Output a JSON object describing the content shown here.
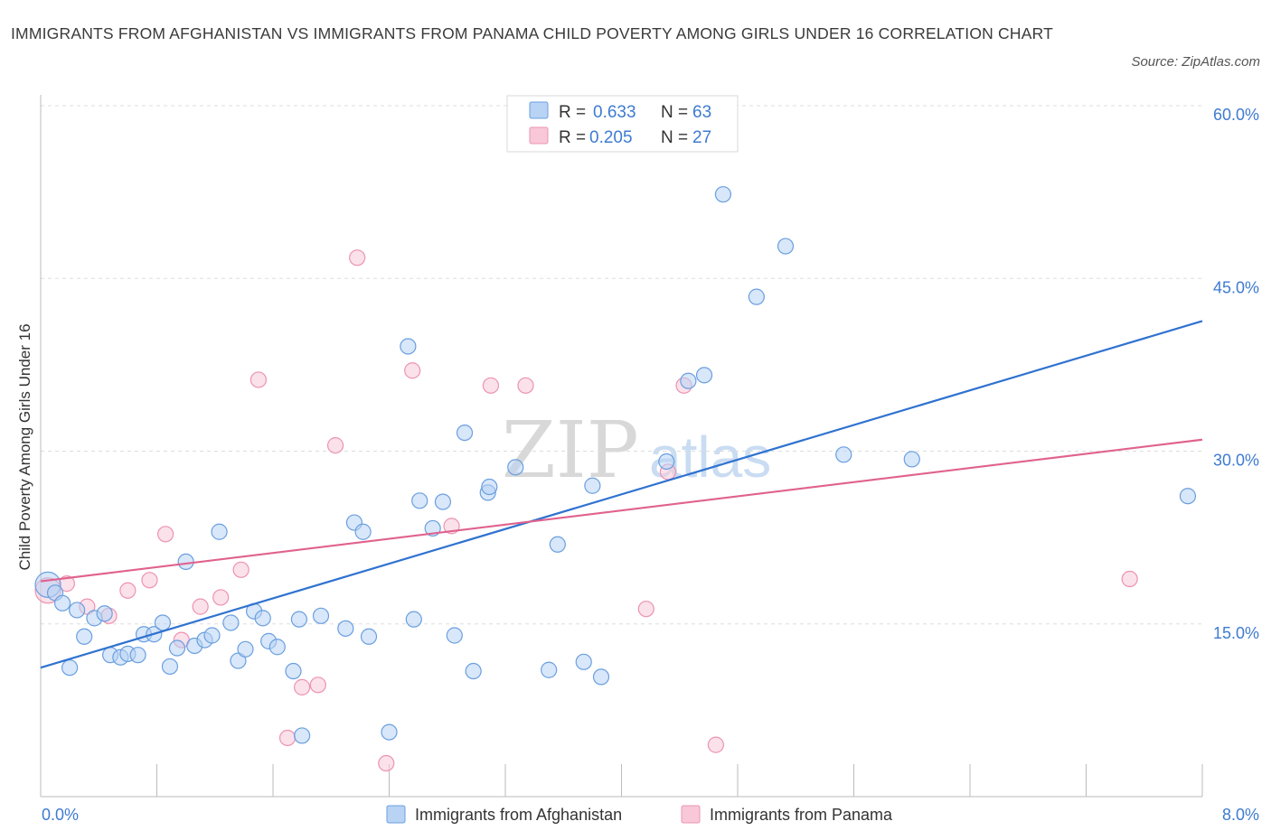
{
  "title": "IMMIGRANTS FROM AFGHANISTAN VS IMMIGRANTS FROM PANAMA CHILD POVERTY AMONG GIRLS UNDER 16 CORRELATION CHART",
  "source": "Source: ZipAtlas.com",
  "watermark": {
    "zip": "ZIP",
    "atlas": "atlas"
  },
  "colors": {
    "afghanistan_fill": "#b8d3f4",
    "afghanistan_stroke": "#6a9fdf",
    "afghanistan_line": "#2f72d0",
    "panama_fill": "#f8c8d8",
    "panama_stroke": "#ec93b2",
    "panama_line": "#e0628e",
    "axis_label": "#3d7bd1",
    "grid": "#dddddd"
  },
  "legend": {
    "rows": [
      {
        "r_label": "R =",
        "r_value": "0.633",
        "n_label": "N =",
        "n_value": "63"
      },
      {
        "r_label": "R =",
        "r_value": "0.205",
        "n_label": "N =",
        "n_value": "27"
      }
    ]
  },
  "chart_data": {
    "type": "scatter",
    "title": "IMMIGRANTS FROM AFGHANISTAN VS IMMIGRANTS FROM PANAMA CHILD POVERTY AMONG GIRLS UNDER 16 CORRELATION CHART",
    "xlabel": "",
    "ylabel": "Child Poverty Among Girls Under 16",
    "xlim": [
      0,
      8
    ],
    "ylim": [
      0,
      60
    ],
    "x_tick_labels": [
      "0.0%",
      "8.0%"
    ],
    "y_ticks": [
      15,
      30,
      45,
      60
    ],
    "y_tick_labels": [
      "15.0%",
      "30.0%",
      "45.0%",
      "60.0%"
    ],
    "grid": true,
    "legend_position": "bottom",
    "series": [
      {
        "name": "Immigrants from Afghanistan",
        "r": 0.633,
        "n": 63,
        "trend": {
          "x": [
            0,
            8
          ],
          "y": [
            11.2,
            41.3
          ]
        },
        "points": [
          {
            "x": 0.05,
            "y": 18.4,
            "big": true
          },
          {
            "x": 0.1,
            "y": 17.7
          },
          {
            "x": 0.15,
            "y": 16.8
          },
          {
            "x": 0.2,
            "y": 11.2
          },
          {
            "x": 0.25,
            "y": 16.2
          },
          {
            "x": 0.3,
            "y": 13.9
          },
          {
            "x": 0.37,
            "y": 15.5
          },
          {
            "x": 0.44,
            "y": 15.9
          },
          {
            "x": 0.48,
            "y": 12.3
          },
          {
            "x": 0.55,
            "y": 12.1
          },
          {
            "x": 0.6,
            "y": 12.4
          },
          {
            "x": 0.67,
            "y": 12.3
          },
          {
            "x": 0.71,
            "y": 14.1
          },
          {
            "x": 0.78,
            "y": 14.1
          },
          {
            "x": 0.84,
            "y": 15.1
          },
          {
            "x": 0.89,
            "y": 11.3
          },
          {
            "x": 0.94,
            "y": 12.9
          },
          {
            "x": 1.0,
            "y": 20.4
          },
          {
            "x": 1.06,
            "y": 13.1
          },
          {
            "x": 1.13,
            "y": 13.6
          },
          {
            "x": 1.18,
            "y": 14.0
          },
          {
            "x": 1.23,
            "y": 23.0
          },
          {
            "x": 1.31,
            "y": 15.1
          },
          {
            "x": 1.36,
            "y": 11.8
          },
          {
            "x": 1.41,
            "y": 12.8
          },
          {
            "x": 1.47,
            "y": 16.1
          },
          {
            "x": 1.53,
            "y": 15.5
          },
          {
            "x": 1.57,
            "y": 13.5
          },
          {
            "x": 1.63,
            "y": 13.0
          },
          {
            "x": 1.74,
            "y": 10.9
          },
          {
            "x": 1.78,
            "y": 15.4
          },
          {
            "x": 1.8,
            "y": 5.3
          },
          {
            "x": 1.93,
            "y": 15.7
          },
          {
            "x": 2.1,
            "y": 14.6
          },
          {
            "x": 2.16,
            "y": 23.8
          },
          {
            "x": 2.22,
            "y": 23.0
          },
          {
            "x": 2.26,
            "y": 13.9
          },
          {
            "x": 2.4,
            "y": 5.6
          },
          {
            "x": 2.53,
            "y": 39.1
          },
          {
            "x": 2.57,
            "y": 15.4
          },
          {
            "x": 2.61,
            "y": 25.7
          },
          {
            "x": 2.7,
            "y": 23.3
          },
          {
            "x": 2.77,
            "y": 25.6
          },
          {
            "x": 2.85,
            "y": 14.0
          },
          {
            "x": 2.92,
            "y": 31.6
          },
          {
            "x": 2.98,
            "y": 10.9
          },
          {
            "x": 3.08,
            "y": 26.4
          },
          {
            "x": 3.09,
            "y": 26.9
          },
          {
            "x": 3.27,
            "y": 28.6
          },
          {
            "x": 3.5,
            "y": 11.0
          },
          {
            "x": 3.56,
            "y": 21.9
          },
          {
            "x": 3.74,
            "y": 11.7
          },
          {
            "x": 3.8,
            "y": 27.0
          },
          {
            "x": 3.86,
            "y": 10.4
          },
          {
            "x": 4.31,
            "y": 29.1
          },
          {
            "x": 4.46,
            "y": 36.1
          },
          {
            "x": 4.57,
            "y": 36.6
          },
          {
            "x": 4.7,
            "y": 52.3
          },
          {
            "x": 4.93,
            "y": 43.4
          },
          {
            "x": 5.13,
            "y": 47.8
          },
          {
            "x": 5.53,
            "y": 29.7
          },
          {
            "x": 6.0,
            "y": 29.3
          },
          {
            "x": 7.9,
            "y": 26.1
          }
        ]
      },
      {
        "name": "Immigrants from Panama",
        "r": 0.205,
        "n": 27,
        "trend": {
          "x": [
            0,
            8
          ],
          "y": [
            18.7,
            31.0
          ]
        },
        "points": [
          {
            "x": 0.05,
            "y": 17.9,
            "big": true
          },
          {
            "x": 0.18,
            "y": 18.5
          },
          {
            "x": 0.32,
            "y": 16.5
          },
          {
            "x": 0.47,
            "y": 15.7
          },
          {
            "x": 0.6,
            "y": 17.9
          },
          {
            "x": 0.75,
            "y": 18.8
          },
          {
            "x": 0.86,
            "y": 22.8
          },
          {
            "x": 0.97,
            "y": 13.6
          },
          {
            "x": 1.1,
            "y": 16.5
          },
          {
            "x": 1.24,
            "y": 17.3
          },
          {
            "x": 1.38,
            "y": 19.7
          },
          {
            "x": 1.5,
            "y": 36.2
          },
          {
            "x": 1.7,
            "y": 5.1
          },
          {
            "x": 1.8,
            "y": 9.5
          },
          {
            "x": 1.91,
            "y": 9.7
          },
          {
            "x": 2.03,
            "y": 30.5
          },
          {
            "x": 2.18,
            "y": 46.8
          },
          {
            "x": 2.38,
            "y": 2.9
          },
          {
            "x": 2.56,
            "y": 37.0
          },
          {
            "x": 2.83,
            "y": 23.5
          },
          {
            "x": 3.1,
            "y": 35.7
          },
          {
            "x": 3.34,
            "y": 35.7
          },
          {
            "x": 4.17,
            "y": 16.3
          },
          {
            "x": 4.32,
            "y": 28.2
          },
          {
            "x": 4.43,
            "y": 35.7
          },
          {
            "x": 4.65,
            "y": 4.5
          },
          {
            "x": 7.5,
            "y": 18.9
          }
        ]
      }
    ]
  }
}
